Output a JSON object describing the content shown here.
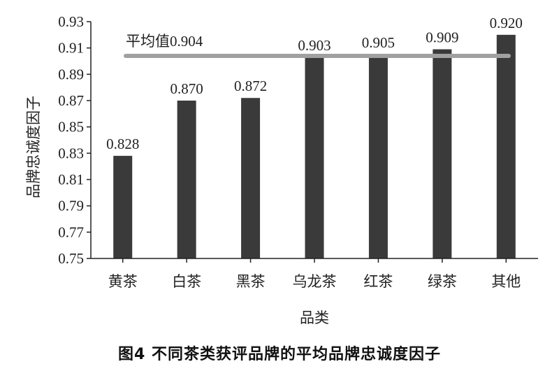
{
  "chart_data": {
    "type": "bar",
    "categories": [
      "黄茶",
      "白茶",
      "黑茶",
      "乌龙茶",
      "红茶",
      "绿茶",
      "其他"
    ],
    "values": [
      0.828,
      0.87,
      0.872,
      0.903,
      0.905,
      0.909,
      0.92
    ],
    "value_labels": [
      "0.828",
      "0.870",
      "0.872",
      "0.903",
      "0.905",
      "0.909",
      "0.920"
    ],
    "ylim": [
      0.75,
      0.93
    ],
    "yticks": [
      "0.75",
      "0.77",
      "0.79",
      "0.81",
      "0.83",
      "0.85",
      "0.87",
      "0.89",
      "0.91",
      "0.93"
    ],
    "ylabel": "品牌忠诚度因子",
    "xlabel": "品类",
    "average": {
      "label": "平均值",
      "value": 0.904,
      "value_label": "0.904"
    },
    "grid": false,
    "colors": {
      "bar": "#3a3a3a",
      "average_line": "#a0a0a0",
      "axis": "#222222"
    }
  },
  "caption": "图4  不同茶类获评品牌的平均品牌忠诚度因子"
}
